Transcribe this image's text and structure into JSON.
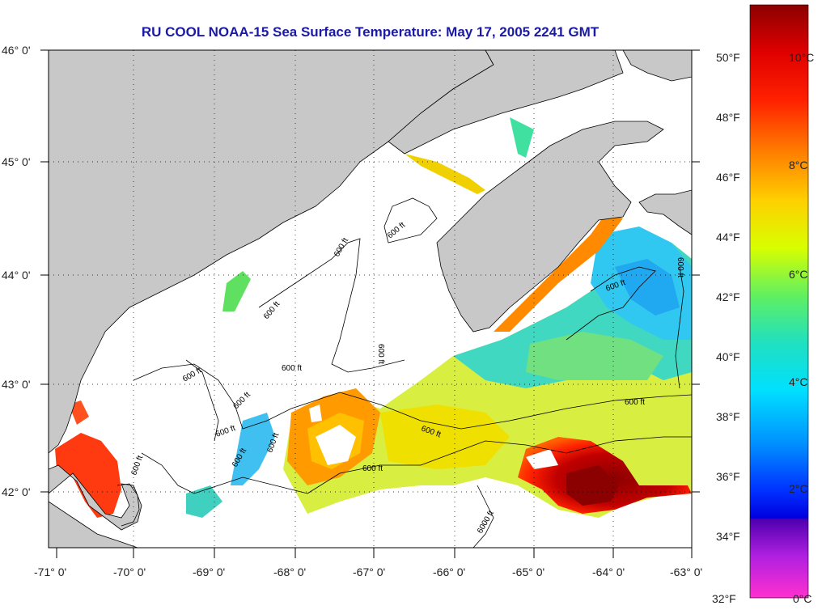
{
  "title": "RU COOL  NOAA-15  Sea Surface Temperature:  May 17, 2005 2241 GMT",
  "map": {
    "lon_labels": [
      "-71° 0'",
      "-70° 0'",
      "-69° 0'",
      "-68° 0'",
      "-67° 0'",
      "-66° 0'",
      "-65° 0'",
      "-64° 0'",
      "-63° 0'"
    ],
    "lat_labels": [
      "46° 0'",
      "45° 0'",
      "44° 0'",
      "43° 0'",
      "42° 0'"
    ],
    "contour_label": "600 ft",
    "contour_label_deep": "6000 ft",
    "colors": {
      "land": "#c8c8c8",
      "no_data": "#ffffff",
      "title": "#1a1aa6"
    }
  },
  "colorbar": {
    "fahrenheit_labels": [
      "50°F",
      "48°F",
      "46°F",
      "44°F",
      "42°F",
      "40°F",
      "38°F",
      "36°F",
      "34°F",
      "32°F"
    ],
    "celsius_labels": [
      "10°C",
      "8°C",
      "6°C",
      "4°C",
      "2°C",
      "0°C"
    ]
  }
}
